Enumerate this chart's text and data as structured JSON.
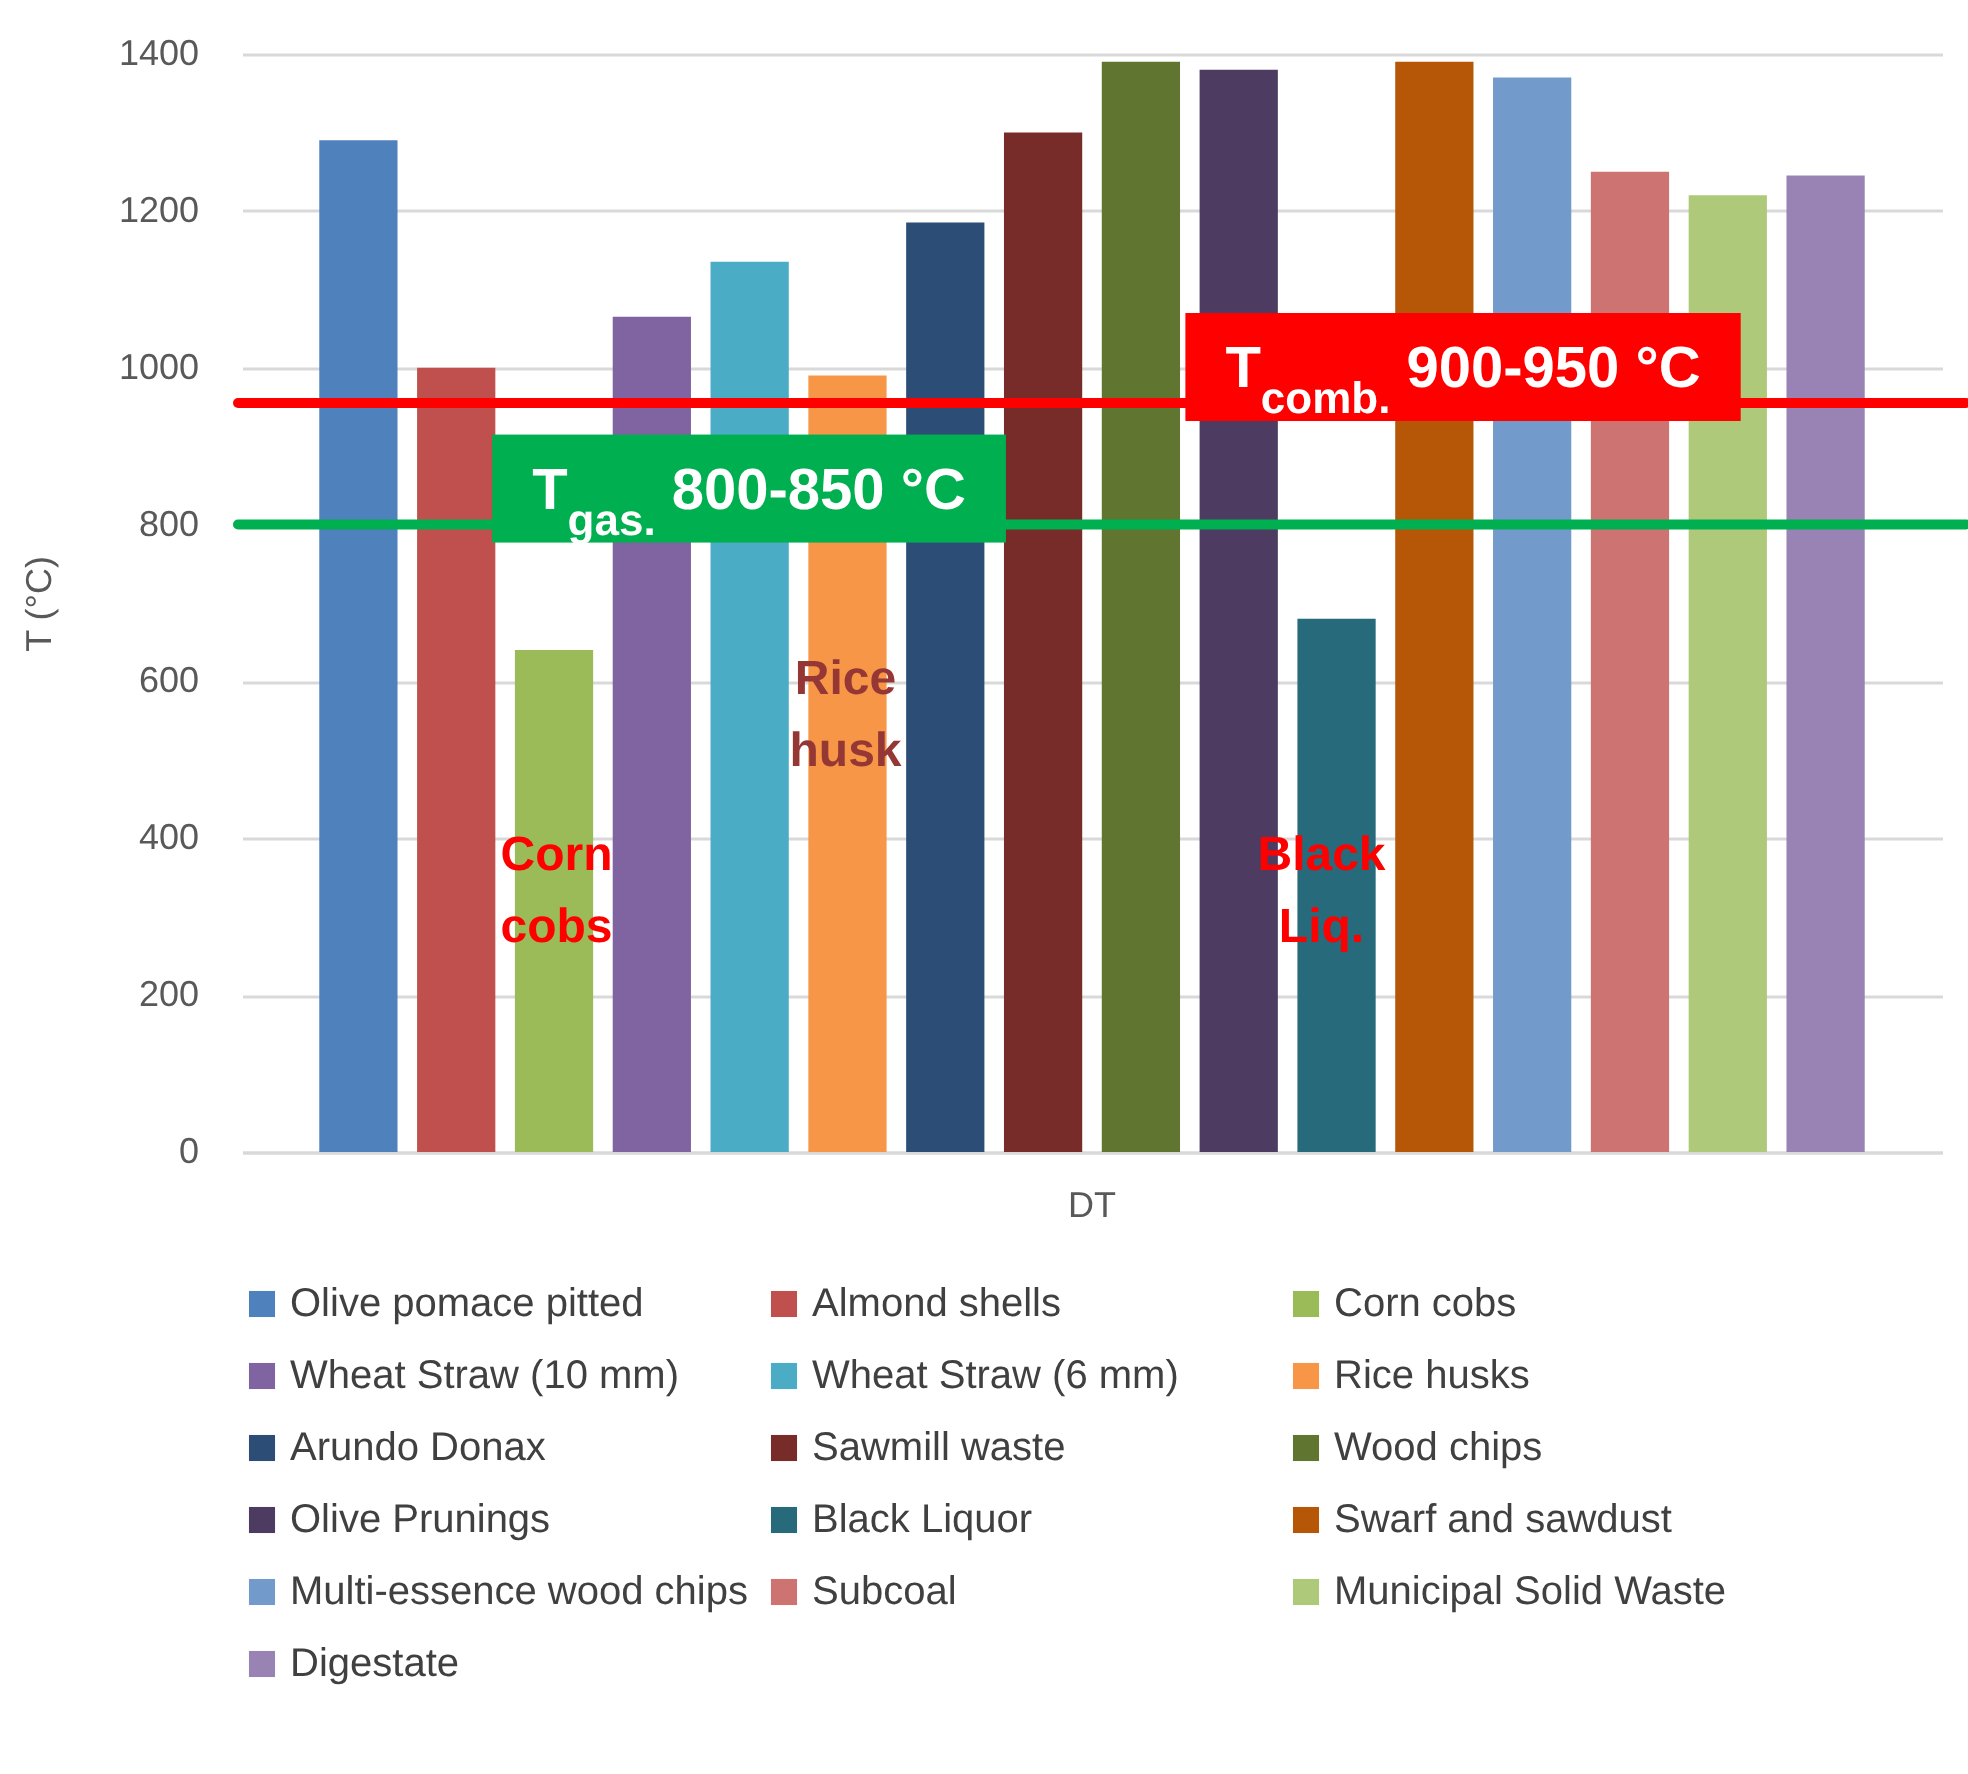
{
  "chart_data": {
    "type": "bar",
    "categories": [
      "DT"
    ],
    "ylabel": "T (°C)",
    "ylim": [
      0,
      1400
    ],
    "yticks": [
      0,
      200,
      400,
      600,
      800,
      1000,
      1200,
      1400
    ],
    "grid": "y",
    "legend": "bottom",
    "series": [
      {
        "name": "Olive pomace pitted",
        "color": "#4f81bd",
        "values": [
          1290
        ]
      },
      {
        "name": "Almond shells",
        "color": "#c0504d",
        "values": [
          1000
        ]
      },
      {
        "name": "Corn cobs",
        "color": "#9bbb59",
        "values": [
          640
        ]
      },
      {
        "name": "Wheat Straw (10 mm)",
        "color": "#8064a2",
        "values": [
          1065
        ]
      },
      {
        "name": "Wheat Straw (6 mm)",
        "color": "#4bacc6",
        "values": [
          1135
        ]
      },
      {
        "name": "Rice husks",
        "color": "#f79646",
        "values": [
          990
        ]
      },
      {
        "name": "Arundo Donax",
        "color": "#2c4d75",
        "values": [
          1185
        ]
      },
      {
        "name": "Sawmill waste",
        "color": "#772c2a",
        "values": [
          1300
        ]
      },
      {
        "name": "Wood chips",
        "color": "#5f7530",
        "values": [
          1390
        ]
      },
      {
        "name": "Olive Prunings",
        "color": "#4d3b62",
        "values": [
          1380
        ]
      },
      {
        "name": "Black Liquor",
        "color": "#276a7c",
        "values": [
          680
        ]
      },
      {
        "name": "Swarf and sawdust",
        "color": "#b65708",
        "values": [
          1390
        ]
      },
      {
        "name": "Multi-essence wood chips",
        "color": "#729aca",
        "values": [
          1370
        ]
      },
      {
        "name": "Subcoal",
        "color": "#cd7371",
        "values": [
          1250
        ]
      },
      {
        "name": "Municipal Solid Waste",
        "color": "#afc97a",
        "values": [
          1220
        ]
      },
      {
        "name": "Digestate",
        "color": "#9983b5",
        "values": [
          1245
        ]
      }
    ],
    "ref_lines": [
      {
        "axis": "y",
        "value": 955,
        "label": "T$_{comb.}$ 900-950 °C",
        "color": "#ff0000"
      },
      {
        "axis": "y",
        "value": 800,
        "label": "T$_{gas.}$ 800-850 °C",
        "color": "#00b050"
      }
    ],
    "annotations": [
      "Corn cobs",
      "Rice husk",
      "Black Liq."
    ]
  }
}
